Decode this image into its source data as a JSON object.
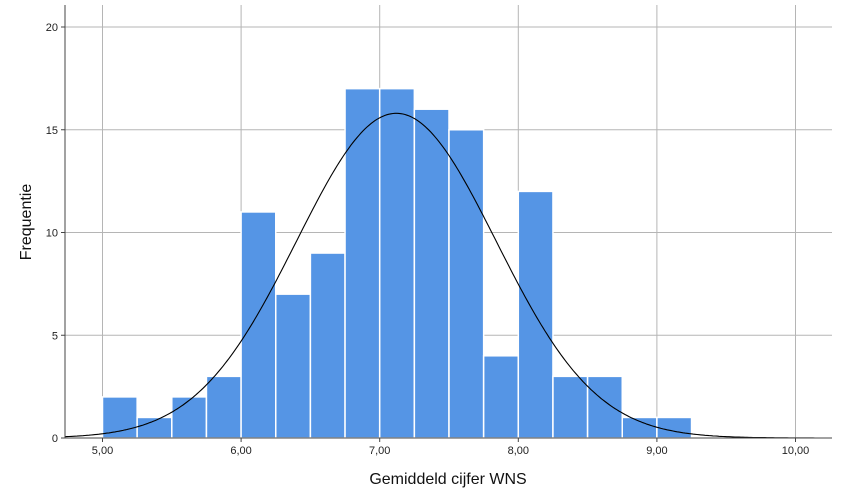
{
  "chart_data": {
    "type": "bar",
    "subtype": "histogram",
    "xlabel": "Gemiddeld cijfer WNS",
    "ylabel": "Frequentie",
    "xlim": [
      4.75,
      10.25
    ],
    "ylim": [
      0,
      21
    ],
    "bin_width": 0.25,
    "bins_start": [
      5.0,
      5.25,
      5.5,
      5.75,
      6.0,
      6.25,
      6.5,
      6.75,
      7.0,
      7.25,
      7.5,
      7.75,
      8.0,
      8.25,
      8.5,
      8.75,
      9.0
    ],
    "values": [
      2,
      1,
      2,
      3,
      11,
      7,
      9,
      17,
      17,
      16,
      15,
      4,
      12,
      3,
      3,
      1,
      1
    ],
    "x_ticks": [
      5,
      6,
      7,
      8,
      9,
      10
    ],
    "x_tick_labels": [
      "5,00",
      "6,00",
      "7,00",
      "8,00",
      "9,00",
      "10,00"
    ],
    "y_ticks": [
      0,
      5,
      10,
      15,
      20
    ],
    "y_tick_labels": [
      "0",
      "5",
      "10",
      "15",
      "20"
    ],
    "normal_curve": {
      "mean": 7.12,
      "peak": 15.8,
      "sd": 0.72
    },
    "grid": true,
    "colors": {
      "bar": "#5595e5",
      "bar_edge": "#ffffff",
      "curve": "#000000",
      "grid": "#b5b5b5",
      "axis": "#444444"
    }
  }
}
